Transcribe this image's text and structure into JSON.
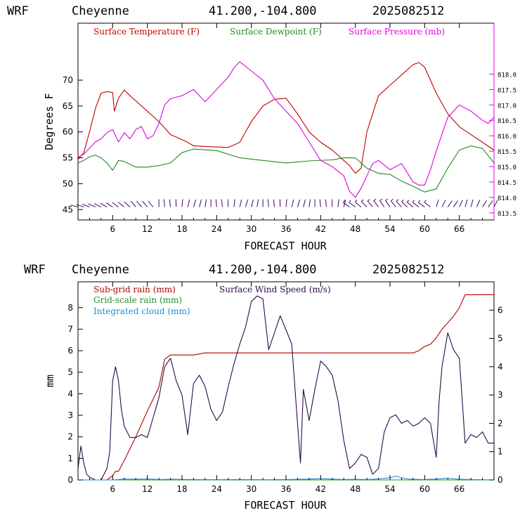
{
  "colors": {
    "temperature": "#c00000",
    "dewpoint": "#1f8a1f",
    "pressure": "#e000e0",
    "subgrid_rain": "#b00000",
    "gridscale_rain": "#2a8a2a",
    "cloud": "#1c8fd6",
    "wind": "#2a0a4a",
    "barb": "#3a0a5a"
  },
  "chart_data": [
    {
      "type": "line",
      "header": {
        "model": "WRF",
        "station": "Cheyenne",
        "coords": "41.200,-104.800",
        "init": "2025082512"
      },
      "xlabel": "FORECAST HOUR",
      "ylabel": "Degrees F",
      "xlim": [
        0,
        72
      ],
      "ylim": [
        43,
        81
      ],
      "y2lim": [
        813.27,
        819.65
      ],
      "xticks": [
        "6",
        "12",
        "18",
        "24",
        "30",
        "36",
        "42",
        "48",
        "54",
        "60",
        "66"
      ],
      "yticks": [
        "45",
        "50",
        "55",
        "60",
        "65",
        "70"
      ],
      "y2ticks": [
        "813.5",
        "814.0",
        "814.5",
        "815.0",
        "815.5",
        "816.0",
        "816.5",
        "817.0",
        "817.5",
        "818.0"
      ],
      "series": [
        {
          "name": "Surface Temperature (F)",
          "axis": "left",
          "x": [
            0,
            1,
            2,
            3,
            4,
            5,
            6,
            6.3,
            7,
            8,
            9,
            10,
            12,
            14,
            16,
            18,
            19,
            20,
            22,
            24,
            26,
            27,
            28,
            30,
            32,
            34,
            36,
            38,
            40,
            42,
            44,
            46,
            47,
            48,
            49,
            50,
            51,
            52,
            54,
            56,
            58,
            59,
            60,
            61,
            62,
            64,
            66,
            68,
            70,
            72
          ],
          "y": [
            54.7,
            56,
            60,
            64.5,
            67.5,
            67.8,
            67.6,
            64,
            66.5,
            68.1,
            67,
            66,
            64,
            62,
            59.5,
            58.5,
            58,
            57.3,
            57.2,
            57.1,
            57,
            57.5,
            58,
            62,
            65,
            66.3,
            66.5,
            63.5,
            60,
            58,
            56.5,
            54.5,
            53.5,
            52,
            53,
            60,
            63.5,
            67,
            69,
            71,
            73,
            73.4,
            72.5,
            70,
            67.5,
            63.5,
            61,
            59.5,
            58,
            56.5
          ]
        },
        {
          "name": "Surface Dewpoint (F)",
          "axis": "left",
          "x": [
            0,
            1,
            2,
            3,
            4,
            5,
            6,
            7,
            8,
            10,
            12,
            14,
            16,
            18,
            20,
            24,
            28,
            32,
            36,
            40,
            44,
            46,
            48,
            50,
            52,
            54,
            56,
            58,
            60,
            62,
            64,
            66,
            68,
            70,
            72
          ],
          "y": [
            54,
            54.5,
            55.2,
            55.5,
            55,
            54,
            52.6,
            54.5,
            54.3,
            53.2,
            53.2,
            53.5,
            54,
            56,
            56.7,
            56.4,
            55,
            54.5,
            54,
            54.4,
            54.6,
            55,
            55,
            53,
            52,
            51.8,
            50.5,
            49.5,
            48.4,
            49,
            53,
            56.5,
            57.3,
            56.8,
            54
          ]
        },
        {
          "name": "Surface Pressure (mb)",
          "axis": "right",
          "x": [
            0,
            1,
            2,
            3,
            4,
            5,
            6,
            7,
            8,
            9,
            10,
            11,
            12,
            13,
            14,
            15,
            16,
            18,
            20,
            22,
            24,
            26,
            27,
            28,
            30,
            32,
            34,
            36,
            38,
            40,
            42,
            44,
            46,
            47,
            48,
            49,
            50,
            51,
            52,
            54,
            56,
            58,
            59,
            60,
            61,
            62,
            64,
            66,
            68,
            70,
            71,
            72
          ],
          "y": [
            815.3,
            815.4,
            815.6,
            815.8,
            815.9,
            816.1,
            816.2,
            815.8,
            816.1,
            815.9,
            816.2,
            816.3,
            815.9,
            816.0,
            816.4,
            817.0,
            817.2,
            817.3,
            817.5,
            817.1,
            817.5,
            817.9,
            818.2,
            818.4,
            818.1,
            817.8,
            817.2,
            816.8,
            816.4,
            815.8,
            815.2,
            815.0,
            814.7,
            814.2,
            814.0,
            814.3,
            814.7,
            815.1,
            815.2,
            814.9,
            815.1,
            814.5,
            814.4,
            814.4,
            814.9,
            815.5,
            816.6,
            817.0,
            816.8,
            816.5,
            816.4,
            816.6
          ]
        }
      ],
      "legend": [
        "Surface Temperature (F)",
        "Surface Dewpoint (F)",
        "Surface Pressure (mb)"
      ],
      "wind_barbs": {
        "x": [
          0,
          1,
          2,
          3,
          4,
          5,
          6,
          7,
          8,
          9,
          10,
          11,
          12,
          13,
          14,
          15,
          16,
          17,
          18,
          19,
          20,
          21,
          22,
          23,
          24,
          25,
          26,
          27,
          28,
          29,
          30,
          31,
          32,
          33,
          34,
          35,
          36,
          37,
          38,
          39,
          40,
          41,
          42,
          43,
          44,
          45,
          46,
          47,
          48,
          49,
          50,
          51,
          52,
          53,
          54,
          55,
          56,
          57,
          58,
          59,
          60,
          61,
          62,
          63,
          64,
          65,
          66,
          67,
          68,
          69,
          70,
          71,
          72
        ]
      }
    },
    {
      "type": "line",
      "header": {
        "model": "WRF",
        "station": "Cheyenne",
        "coords": "41.200,-104.800",
        "init": "2025082512"
      },
      "xlabel": "FORECAST HOUR",
      "ylabel": "mm",
      "xlim": [
        0,
        72
      ],
      "ylim": [
        0,
        9.2
      ],
      "y2lim": [
        0,
        7.0
      ],
      "xticks": [
        "6",
        "12",
        "18",
        "24",
        "30",
        "36",
        "42",
        "48",
        "54",
        "60",
        "66"
      ],
      "yticks": [
        "0",
        "1",
        "2",
        "3",
        "4",
        "5",
        "6",
        "7",
        "8"
      ],
      "y2ticks": [
        "0",
        "1",
        "2",
        "3",
        "4",
        "5",
        "6"
      ],
      "series": [
        {
          "name": "Sub-grid rain (mm)",
          "axis": "left",
          "x": [
            0,
            3,
            5,
            6,
            6.5,
            7,
            8,
            10,
            12,
            14,
            15,
            16,
            18,
            20,
            22,
            24,
            26,
            28,
            30,
            40,
            50,
            58,
            59,
            60,
            61,
            62,
            63,
            64,
            65,
            66,
            67,
            72
          ],
          "y": [
            0,
            0,
            0,
            0.2,
            0.4,
            0.4,
            0.9,
            2.0,
            3.2,
            4.3,
            5.6,
            5.8,
            5.8,
            5.8,
            5.9,
            5.9,
            5.9,
            5.9,
            5.9,
            5.9,
            5.9,
            5.9,
            6.0,
            6.2,
            6.3,
            6.6,
            7.0,
            7.3,
            7.6,
            8.0,
            8.6,
            8.6
          ]
        },
        {
          "name": "Surface Wind Speed (m/s)",
          "axis": "right",
          "x": [
            0,
            0.5,
            1,
            1.5,
            2,
            3,
            4,
            5,
            5.5,
            6,
            6.5,
            7,
            7.5,
            8,
            9,
            10,
            11,
            12,
            13,
            14,
            15,
            16,
            17,
            18,
            19,
            20,
            21,
            22,
            23,
            24,
            25,
            26,
            27,
            28,
            29,
            30,
            31,
            32,
            33,
            34,
            35,
            36,
            37,
            38,
            38.5,
            39,
            40,
            41,
            42,
            43,
            44,
            45,
            46,
            47,
            48,
            49,
            50,
            51,
            52,
            53,
            54,
            55,
            56,
            57,
            58,
            59,
            60,
            61,
            62,
            62.5,
            63,
            64,
            65,
            66,
            67,
            68,
            69,
            70,
            71,
            72
          ],
          "y": [
            0.4,
            1.2,
            0.6,
            0.2,
            0.1,
            0.0,
            0.0,
            0.4,
            1.0,
            3.5,
            4.0,
            3.5,
            2.5,
            1.9,
            1.5,
            1.5,
            1.6,
            1.5,
            2.2,
            2.9,
            4.0,
            4.3,
            3.5,
            3.0,
            1.6,
            3.4,
            3.7,
            3.3,
            2.5,
            2.1,
            2.4,
            3.3,
            4.1,
            4.8,
            5.4,
            6.3,
            6.5,
            6.4,
            4.6,
            5.2,
            5.8,
            5.3,
            4.8,
            2.0,
            0.6,
            3.2,
            2.1,
            3.2,
            4.2,
            4.0,
            3.7,
            2.8,
            1.4,
            0.4,
            0.6,
            0.9,
            0.8,
            0.2,
            0.4,
            1.7,
            2.2,
            2.3,
            2.0,
            2.1,
            1.9,
            2.0,
            2.2,
            2.0,
            0.8,
            2.8,
            4.0,
            5.2,
            4.6,
            4.3,
            1.3,
            1.6,
            1.5,
            1.7,
            1.3,
            1.3
          ]
        },
        {
          "name": "Grid-scale rain (mm)",
          "axis": "left",
          "x": [
            0,
            72
          ],
          "y": [
            0,
            0
          ]
        },
        {
          "name": "Integrated cloud (mm)",
          "axis": "left",
          "x": [
            0,
            6,
            7,
            8,
            10,
            12,
            14,
            16,
            20,
            24,
            28,
            32,
            36,
            40,
            42,
            44,
            46,
            48,
            50,
            52,
            54,
            55,
            56,
            57,
            58,
            60,
            62,
            64,
            66,
            68,
            70,
            72
          ],
          "y": [
            0,
            0,
            0.02,
            0.05,
            0.03,
            0.05,
            0.02,
            0.03,
            0.02,
            0.01,
            0.02,
            0.01,
            0.02,
            0.04,
            0.06,
            0.04,
            0.02,
            0.03,
            0.02,
            0.05,
            0.1,
            0.18,
            0.1,
            0.05,
            0.03,
            0.02,
            0.04,
            0.08,
            0.03,
            0.02,
            0.01,
            0
          ]
        }
      ],
      "legend": [
        "Sub-grid rain (mm)",
        "Surface Wind Speed (m/s)",
        "Grid-scale rain (mm)",
        "Integrated cloud (mm)"
      ]
    }
  ]
}
